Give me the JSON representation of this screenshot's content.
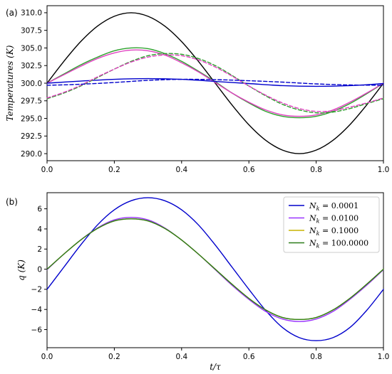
{
  "chart_data": [
    {
      "panel_label": "(a)",
      "type": "line",
      "ylabel": "Temperatures (K)",
      "xlabel": "",
      "xlim": [
        0,
        1
      ],
      "ylim": [
        289,
        311
      ],
      "xticks": [
        "0.0",
        "0.2",
        "0.4",
        "0.6",
        "0.8",
        "1.0"
      ],
      "yticks": [
        "290.0",
        "292.5",
        "295.0",
        "297.5",
        "300.0",
        "302.5",
        "305.0",
        "307.5",
        "310.0"
      ],
      "grid": false,
      "series": [
        {
          "color": "#000000",
          "style": "solid",
          "x": [
            0,
            0.05,
            0.1,
            0.15,
            0.2,
            0.25,
            0.3,
            0.35,
            0.4,
            0.45,
            0.5,
            0.55,
            0.6,
            0.65,
            0.7,
            0.75,
            0.8,
            0.85,
            0.9,
            0.95,
            1.0
          ],
          "y": [
            300,
            303.1,
            305.9,
            308.1,
            309.5,
            310.0,
            309.5,
            308.1,
            305.9,
            303.1,
            300,
            296.9,
            294.1,
            291.9,
            290.5,
            290.0,
            290.5,
            291.9,
            294.1,
            296.9,
            300
          ]
        },
        {
          "color": "#2ca02c",
          "style": "solid",
          "x": [
            0,
            0.05,
            0.1,
            0.15,
            0.2,
            0.25,
            0.3,
            0.35,
            0.4,
            0.45,
            0.5,
            0.55,
            0.6,
            0.65,
            0.7,
            0.75,
            0.8,
            0.85,
            0.9,
            0.95,
            1.0
          ],
          "y": [
            300.0,
            301.3,
            302.6,
            303.7,
            304.6,
            305.0,
            304.9,
            304.2,
            303.1,
            301.7,
            300.2,
            298.6,
            297.2,
            296.0,
            295.3,
            295.1,
            295.3,
            296.0,
            297.1,
            298.5,
            300.0
          ]
        },
        {
          "color": "#e040c0",
          "style": "solid",
          "x": [
            0,
            0.05,
            0.1,
            0.15,
            0.2,
            0.25,
            0.3,
            0.35,
            0.4,
            0.45,
            0.5,
            0.55,
            0.6,
            0.65,
            0.7,
            0.75,
            0.8,
            0.85,
            0.9,
            0.95,
            1.0
          ],
          "y": [
            300.0,
            301.2,
            302.4,
            303.5,
            304.3,
            304.7,
            304.6,
            304.0,
            302.9,
            301.6,
            300.1,
            298.6,
            297.3,
            296.2,
            295.5,
            295.3,
            295.5,
            296.2,
            297.3,
            298.6,
            300.0
          ]
        },
        {
          "color": "#0000cc",
          "style": "solid",
          "x": [
            0,
            0.1,
            0.2,
            0.3,
            0.4,
            0.5,
            0.6,
            0.7,
            0.8,
            0.9,
            1.0
          ],
          "y": [
            300.0,
            300.3,
            300.55,
            300.65,
            300.55,
            300.25,
            299.95,
            299.65,
            299.55,
            299.65,
            299.95
          ]
        },
        {
          "color": "#2ca02c",
          "style": "dashed",
          "x": [
            0,
            0.05,
            0.1,
            0.15,
            0.2,
            0.25,
            0.3,
            0.35,
            0.4,
            0.45,
            0.5,
            0.55,
            0.6,
            0.65,
            0.7,
            0.75,
            0.8,
            0.85,
            0.9,
            0.95,
            1.0
          ],
          "y": [
            297.8,
            298.6,
            299.6,
            300.8,
            302.0,
            303.1,
            303.9,
            304.2,
            304.1,
            303.5,
            302.5,
            301.1,
            299.6,
            298.2,
            297.0,
            296.2,
            295.8,
            295.9,
            296.4,
            297.1,
            297.8
          ]
        },
        {
          "color": "#e040c0",
          "style": "dashed",
          "x": [
            0,
            0.05,
            0.1,
            0.15,
            0.2,
            0.25,
            0.3,
            0.35,
            0.4,
            0.45,
            0.5,
            0.55,
            0.6,
            0.65,
            0.7,
            0.75,
            0.8,
            0.85,
            0.9,
            0.95,
            1.0
          ],
          "y": [
            297.9,
            298.7,
            299.7,
            300.9,
            302.0,
            303.0,
            303.7,
            304.0,
            303.9,
            303.3,
            302.3,
            301.0,
            299.6,
            298.3,
            297.2,
            296.4,
            296.0,
            296.1,
            296.6,
            297.2,
            297.9
          ]
        },
        {
          "color": "#0000cc",
          "style": "dashed",
          "x": [
            0,
            0.1,
            0.2,
            0.3,
            0.4,
            0.5,
            0.6,
            0.7,
            0.8,
            0.9,
            1.0
          ],
          "y": [
            299.7,
            299.85,
            300.1,
            300.4,
            300.55,
            300.5,
            300.35,
            300.15,
            299.9,
            299.75,
            299.7
          ]
        }
      ]
    },
    {
      "panel_label": "(b)",
      "type": "line",
      "ylabel": "q (K)",
      "xlabel": "t/τ",
      "xlim": [
        0,
        1
      ],
      "ylim": [
        -7.8,
        7.6
      ],
      "xticks": [
        "0.0",
        "0.2",
        "0.4",
        "0.6",
        "0.8",
        "1.0"
      ],
      "yticks": [
        "−6",
        "−4",
        "−2",
        "0",
        "2",
        "4",
        "6"
      ],
      "grid": false,
      "legend_position": "top-right",
      "series": [
        {
          "name": "N_k = 0.0001",
          "color": "#0000cc",
          "x": [
            0,
            0.05,
            0.1,
            0.15,
            0.2,
            0.25,
            0.3,
            0.35,
            0.4,
            0.45,
            0.5,
            0.55,
            0.6,
            0.65,
            0.7,
            0.75,
            0.8,
            0.85,
            0.9,
            0.95,
            1.0
          ],
          "y": [
            -2.0,
            0.2,
            2.4,
            4.4,
            5.9,
            6.8,
            7.1,
            6.8,
            5.9,
            4.4,
            2.4,
            0.2,
            -2.0,
            -4.1,
            -5.8,
            -6.8,
            -7.1,
            -6.8,
            -5.8,
            -4.1,
            -2.0
          ]
        },
        {
          "name": "N_k = 0.0100",
          "color": "#9933ff",
          "x": [
            0,
            0.05,
            0.1,
            0.15,
            0.2,
            0.25,
            0.3,
            0.35,
            0.4,
            0.45,
            0.5,
            0.55,
            0.6,
            0.65,
            0.7,
            0.75,
            0.8,
            0.85,
            0.9,
            0.95,
            1.0
          ],
          "y": [
            -0.05,
            1.5,
            2.9,
            4.1,
            4.9,
            5.15,
            4.9,
            4.1,
            2.9,
            1.5,
            -0.05,
            -1.6,
            -3.0,
            -4.2,
            -4.95,
            -5.2,
            -4.95,
            -4.2,
            -3.0,
            -1.6,
            -0.05
          ]
        },
        {
          "name": "N_k = 0.1000",
          "color": "#c8b400",
          "x": [
            0,
            0.05,
            0.1,
            0.15,
            0.2,
            0.25,
            0.3,
            0.35,
            0.4,
            0.45,
            0.5,
            0.55,
            0.6,
            0.65,
            0.7,
            0.75,
            0.8,
            0.85,
            0.9,
            0.95,
            1.0
          ],
          "y": [
            0.0,
            1.5,
            2.9,
            4.05,
            4.8,
            5.0,
            4.8,
            4.05,
            2.9,
            1.5,
            0.0,
            -1.5,
            -2.9,
            -4.05,
            -4.8,
            -5.0,
            -4.8,
            -4.05,
            -2.9,
            -1.5,
            0.0
          ]
        },
        {
          "name": "N_k = 100.0000",
          "color": "#2e7d1a",
          "x": [
            0,
            0.05,
            0.1,
            0.15,
            0.2,
            0.25,
            0.3,
            0.35,
            0.4,
            0.45,
            0.5,
            0.55,
            0.6,
            0.65,
            0.7,
            0.75,
            0.8,
            0.85,
            0.9,
            0.95,
            1.0
          ],
          "y": [
            0.0,
            1.5,
            2.9,
            4.05,
            4.8,
            5.0,
            4.8,
            4.05,
            2.9,
            1.5,
            0.0,
            -1.5,
            -2.9,
            -4.05,
            -4.8,
            -5.0,
            -4.8,
            -4.05,
            -2.9,
            -1.5,
            0.0
          ]
        }
      ]
    }
  ]
}
